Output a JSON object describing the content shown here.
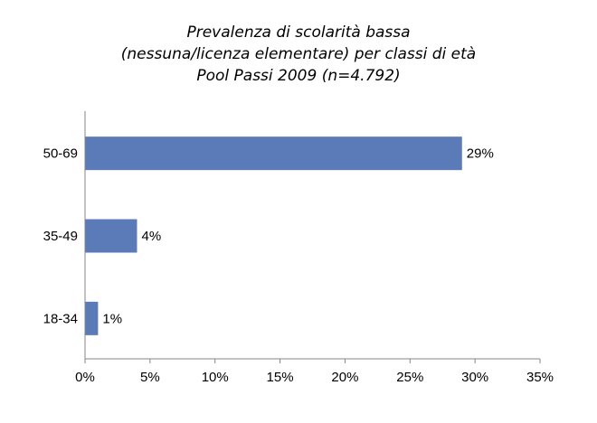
{
  "chart_data": {
    "type": "bar",
    "orientation": "horizontal",
    "title": [
      "Prevalenza di scolarità bassa",
      "(nessuna/licenza elementare) per classi di età",
      "Pool Passi 2009 (n=4.792)"
    ],
    "categories": [
      "50-69",
      "35-49",
      "18-34"
    ],
    "values": [
      29,
      4,
      1
    ],
    "data_labels": [
      "29%",
      "4%",
      "1%"
    ],
    "xlim": [
      0,
      35
    ],
    "xticks": [
      0,
      5,
      10,
      15,
      20,
      25,
      30,
      35
    ],
    "xtick_labels": [
      "0%",
      "5%",
      "10%",
      "15%",
      "20%",
      "25%",
      "30%",
      "35%"
    ],
    "xlabel": "",
    "ylabel": "",
    "grid": false,
    "legend": "none",
    "bar_color": "#5B7AB8"
  }
}
